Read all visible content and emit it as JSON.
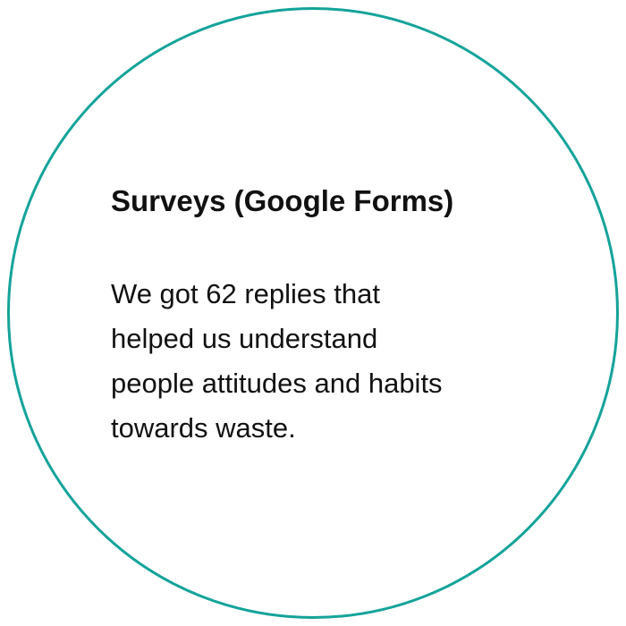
{
  "card": {
    "title": "Surveys (Google Forms)",
    "body_lines": [
      "We got 62 replies that",
      "helped us understand",
      "people attitudes and habits",
      "towards waste."
    ],
    "colors": {
      "ring": "#14a39a",
      "text": "#111111",
      "background": "#ffffff"
    }
  }
}
